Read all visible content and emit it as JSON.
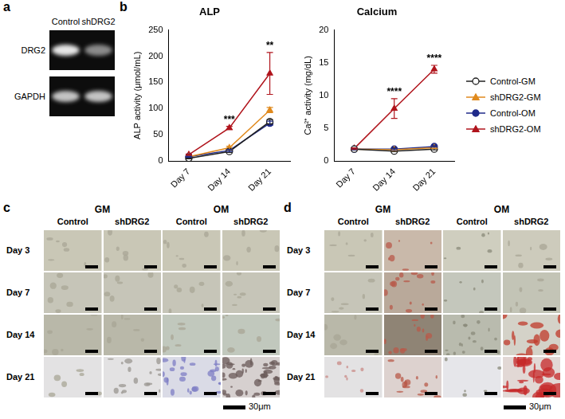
{
  "gel": {
    "panel": "a",
    "lanes": [
      "Control",
      "shDRG2"
    ],
    "bands": [
      "DRG2",
      "GAPDH"
    ]
  },
  "panel_b": {
    "panel": "b"
  },
  "chart_data": [
    {
      "type": "line",
      "title": "ALP",
      "y_label": "ALP activity (μmol/mL)",
      "categories": [
        "Day 7",
        "Day 14",
        "Day 21"
      ],
      "series": [
        {
          "name": "Control-GM",
          "color": "#222222",
          "marker": "circle-open",
          "values": [
            5,
            18,
            75
          ],
          "errors": [
            1,
            2,
            4
          ]
        },
        {
          "name": "shDRG2-GM",
          "color": "#e08a1e",
          "marker": "triangle",
          "values": [
            8,
            25,
            97
          ],
          "errors": [
            1,
            3,
            5
          ]
        },
        {
          "name": "Control-OM",
          "color": "#1f2a8a",
          "marker": "circle",
          "values": [
            8,
            20,
            72
          ],
          "errors": [
            1,
            2,
            4
          ]
        },
        {
          "name": "shDRG2-OM",
          "color": "#b0141c",
          "marker": "triangle",
          "values": [
            12,
            63,
            167
          ],
          "errors": [
            1,
            3,
            40
          ]
        }
      ],
      "annotations": [
        {
          "x": "Day 14",
          "text": "***"
        },
        {
          "x": "Day 21",
          "text": "**"
        }
      ],
      "ylim": [
        0,
        250
      ],
      "yticks": [
        0,
        50,
        100,
        150,
        200,
        250
      ],
      "grid": false,
      "legend": "right"
    },
    {
      "type": "line",
      "title": "Calcium",
      "y_label": "Ca²⁺ activity (mg/dL)",
      "categories": [
        "Day 7",
        "Day 14",
        "Day 21"
      ],
      "series": [
        {
          "name": "Control-GM",
          "color": "#222222",
          "marker": "circle-open",
          "values": [
            1.8,
            1.5,
            1.8
          ],
          "errors": [
            0.1,
            0.1,
            0.1
          ]
        },
        {
          "name": "shDRG2-GM",
          "color": "#e08a1e",
          "marker": "triangle",
          "values": [
            1.8,
            1.7,
            2.0
          ],
          "errors": [
            0.1,
            0.1,
            0.1
          ]
        },
        {
          "name": "Control-OM",
          "color": "#1f2a8a",
          "marker": "circle",
          "values": [
            1.8,
            1.8,
            2.2
          ],
          "errors": [
            0.1,
            0.1,
            0.1
          ]
        },
        {
          "name": "shDRG2-OM",
          "color": "#b0141c",
          "marker": "triangle",
          "values": [
            1.9,
            8.0,
            14.0
          ],
          "errors": [
            0.1,
            1.5,
            0.6
          ]
        }
      ],
      "annotations": [
        {
          "x": "Day 14",
          "text": "****"
        },
        {
          "x": "Day 21",
          "text": "****"
        }
      ],
      "ylim": [
        0,
        20
      ],
      "yticks": [
        0,
        5,
        10,
        15,
        20
      ],
      "grid": false,
      "legend": "right"
    }
  ],
  "stain_c": {
    "panel": "c",
    "groups": [
      "GM",
      "OM"
    ],
    "columns": [
      "Control",
      "shDRG2"
    ],
    "rows": [
      "Day 3",
      "Day 7",
      "Day 14",
      "Day 21"
    ],
    "scale_bar": "30μm"
  },
  "stain_d": {
    "panel": "d",
    "groups": [
      "GM",
      "OM"
    ],
    "columns": [
      "Control",
      "shDRG2"
    ],
    "rows": [
      "Day 3",
      "Day 7",
      "Day 14",
      "Day 21"
    ],
    "scale_bar": "30μm"
  }
}
